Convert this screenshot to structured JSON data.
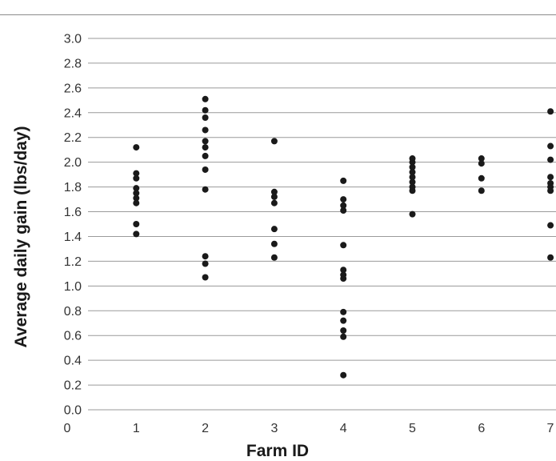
{
  "chart_data": {
    "type": "scatter",
    "title": "",
    "xlabel": "Farm ID",
    "ylabel": "Average daily gain (lbs/day)",
    "xlim": [
      0,
      7
    ],
    "ylim": [
      0.0,
      3.0
    ],
    "x_ticks": [
      "0",
      "1",
      "2",
      "3",
      "4",
      "5",
      "6",
      "7"
    ],
    "y_ticks": [
      "0.0",
      "0.2",
      "0.4",
      "0.6",
      "0.8",
      "1.0",
      "1.2",
      "1.4",
      "1.6",
      "1.8",
      "2.0",
      "2.2",
      "2.4",
      "2.6",
      "2.8",
      "3.0"
    ],
    "grid": "horizontal",
    "legend": "none",
    "point_color": "#1a1a1a",
    "grid_color": "#9a9a9a",
    "series": [
      {
        "points": [
          [
            1,
            2.12
          ],
          [
            1,
            1.91
          ],
          [
            1,
            1.87
          ],
          [
            1,
            1.79
          ],
          [
            1,
            1.75
          ],
          [
            1,
            1.71
          ],
          [
            1,
            1.67
          ],
          [
            1,
            1.5
          ],
          [
            1,
            1.42
          ],
          [
            2,
            2.51
          ],
          [
            2,
            2.42
          ],
          [
            2,
            2.36
          ],
          [
            2,
            2.26
          ],
          [
            2,
            2.17
          ],
          [
            2,
            2.12
          ],
          [
            2,
            2.05
          ],
          [
            2,
            1.94
          ],
          [
            2,
            1.78
          ],
          [
            2,
            1.24
          ],
          [
            2,
            1.18
          ],
          [
            2,
            1.07
          ],
          [
            3,
            2.17
          ],
          [
            3,
            1.76
          ],
          [
            3,
            1.72
          ],
          [
            3,
            1.67
          ],
          [
            3,
            1.46
          ],
          [
            3,
            1.34
          ],
          [
            3,
            1.23
          ],
          [
            4,
            1.85
          ],
          [
            4,
            1.7
          ],
          [
            4,
            1.65
          ],
          [
            4,
            1.61
          ],
          [
            4,
            1.33
          ],
          [
            4,
            1.13
          ],
          [
            4,
            1.09
          ],
          [
            4,
            1.06
          ],
          [
            4,
            0.79
          ],
          [
            4,
            0.72
          ],
          [
            4,
            0.64
          ],
          [
            4,
            0.59
          ],
          [
            4,
            0.28
          ],
          [
            5,
            2.03
          ],
          [
            5,
            2.0
          ],
          [
            5,
            1.96
          ],
          [
            5,
            1.92
          ],
          [
            5,
            1.88
          ],
          [
            5,
            1.84
          ],
          [
            5,
            1.8
          ],
          [
            5,
            1.77
          ],
          [
            5,
            1.58
          ],
          [
            6,
            2.03
          ],
          [
            6,
            1.99
          ],
          [
            6,
            1.87
          ],
          [
            6,
            1.77
          ],
          [
            7,
            2.41
          ],
          [
            7,
            2.13
          ],
          [
            7,
            2.02
          ],
          [
            7,
            1.88
          ],
          [
            7,
            1.83
          ],
          [
            7,
            1.8
          ],
          [
            7,
            1.77
          ],
          [
            7,
            1.49
          ],
          [
            7,
            1.23
          ]
        ]
      }
    ]
  }
}
